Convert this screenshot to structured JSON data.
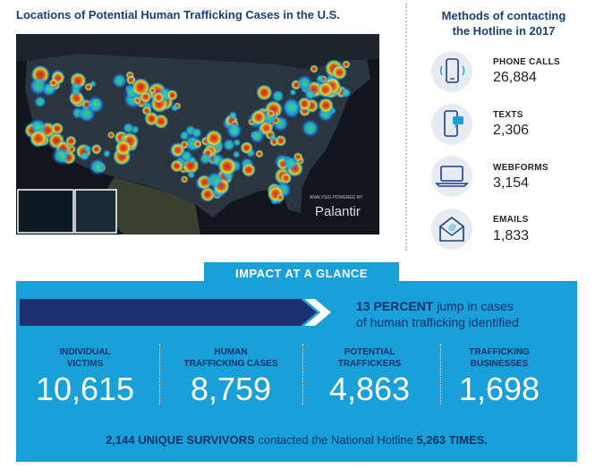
{
  "map": {
    "title": "Locations of Potential Human Trafficking Cases in the U.S.",
    "credit_small": "ANALYSIS POWERED BY",
    "credit_brand": "Palantir"
  },
  "methods": {
    "title_line1": "Methods of contacting",
    "title_line2": "the Hotline in 2017",
    "items": [
      {
        "label": "PHONE CALLS",
        "value": "26,884",
        "icon": "phone-call-icon"
      },
      {
        "label": "TEXTS",
        "value": "2,306",
        "icon": "text-message-icon"
      },
      {
        "label": "WEBFORMS",
        "value": "3,154",
        "icon": "laptop-icon"
      },
      {
        "label": "EMAILS",
        "value": "1,833",
        "icon": "email-envelope-icon"
      }
    ]
  },
  "impact": {
    "banner": "IMPACT AT A GLANCE",
    "jump_strong": "13 PERCENT",
    "jump_rest": "jump in cases",
    "jump_line2": "of human trafficking identified",
    "stats": [
      {
        "label_line1": "INDIVIDUAL",
        "label_line2": "VICTIMS",
        "value": "10,615"
      },
      {
        "label_line1": "HUMAN",
        "label_line2": "TRAFFICKING CASES",
        "value": "8,759"
      },
      {
        "label_line1": "POTENTIAL",
        "label_line2": "TRAFFICKERS",
        "value": "4,863"
      },
      {
        "label_line1": "TRAFFICKING",
        "label_line2": "BUSINESSES",
        "value": "1,698"
      }
    ],
    "survivors": {
      "strong1": "2,144 UNIQUE SURVIVORS",
      "middle": "contacted the National Hotline",
      "strong2": "5,263 TIMES."
    }
  },
  "colors": {
    "navy": "#1a3e7a",
    "impact_blue": "#1aa0d8",
    "dark_navy": "#10306b"
  }
}
